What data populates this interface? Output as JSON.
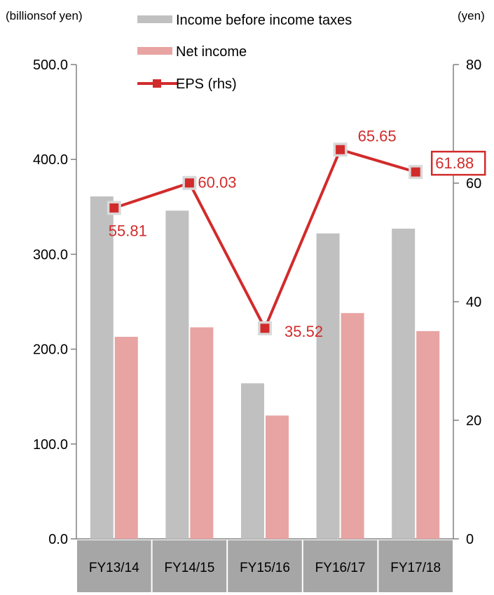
{
  "chart_data": {
    "type": "bar",
    "categories": [
      "FY13/14",
      "FY14/15",
      "FY15/16",
      "FY16/17",
      "FY17/18"
    ],
    "ylabel_left": "(billionsof yen)",
    "ylabel_right": "(yen)",
    "ylim_left": [
      0,
      500
    ],
    "ylim_right": [
      0,
      80
    ],
    "yticks_left": [
      "0.0",
      "100.0",
      "200.0",
      "300.0",
      "400.0",
      "500.0"
    ],
    "yticks_right": [
      "0",
      "20",
      "40",
      "60",
      "80"
    ],
    "legend_position": "top-center",
    "series": [
      {
        "name": "Income before income taxes",
        "type": "bar",
        "axis": "left",
        "color": "#c0c0c0",
        "values": [
          361,
          346,
          164,
          322,
          327
        ]
      },
      {
        "name": "Net income",
        "type": "bar",
        "axis": "left",
        "color": "#e8a4a2",
        "values": [
          213,
          223,
          130,
          238,
          219
        ]
      },
      {
        "name": "EPS (rhs)",
        "type": "line",
        "axis": "right",
        "color": "#d22b2b",
        "values": [
          55.81,
          60.03,
          35.52,
          65.65,
          61.88
        ],
        "labels": [
          "55.81",
          "60.03",
          "35.52",
          "65.65",
          "61.88"
        ]
      }
    ]
  }
}
